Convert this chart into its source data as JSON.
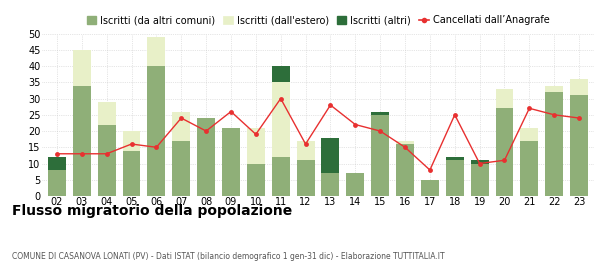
{
  "years": [
    "02",
    "03",
    "04",
    "05",
    "06",
    "07",
    "08",
    "09",
    "10",
    "11",
    "12",
    "13",
    "14",
    "15",
    "16",
    "17",
    "18",
    "19",
    "20",
    "21",
    "22",
    "23"
  ],
  "iscritti_comuni": [
    8,
    34,
    22,
    14,
    40,
    17,
    24,
    21,
    10,
    12,
    11,
    7,
    7,
    25,
    16,
    5,
    11,
    10,
    27,
    17,
    32,
    31
  ],
  "iscritti_estero": [
    0,
    11,
    7,
    6,
    9,
    9,
    0,
    0,
    11,
    23,
    6,
    0,
    0,
    0,
    1,
    0,
    0,
    0,
    6,
    4,
    2,
    5
  ],
  "iscritti_altri": [
    4,
    0,
    0,
    0,
    0,
    0,
    0,
    0,
    0,
    5,
    0,
    11,
    0,
    1,
    0,
    0,
    1,
    1,
    0,
    0,
    0,
    0
  ],
  "cancellati": [
    13,
    13,
    13,
    16,
    15,
    24,
    20,
    26,
    19,
    30,
    16,
    28,
    22,
    20,
    15,
    8,
    25,
    10,
    11,
    27,
    25,
    24
  ],
  "color_comuni": "#8faf78",
  "color_estero": "#e8f0c8",
  "color_altri": "#2d6e3a",
  "color_cancellati": "#e83030",
  "ylim": [
    0,
    50
  ],
  "yticks": [
    0,
    5,
    10,
    15,
    20,
    25,
    30,
    35,
    40,
    45,
    50
  ],
  "title": "Flusso migratorio della popolazione",
  "subtitle": "COMUNE DI CASANOVA LONATI (PV) - Dati ISTAT (bilancio demografico 1 gen-31 dic) - Elaborazione TUTTITALIA.IT",
  "legend_labels": [
    "Iscritti (da altri comuni)",
    "Iscritti (dall'estero)",
    "Iscritti (altri)",
    "Cancellati dall’Anagrafe"
  ],
  "background_color": "#ffffff"
}
